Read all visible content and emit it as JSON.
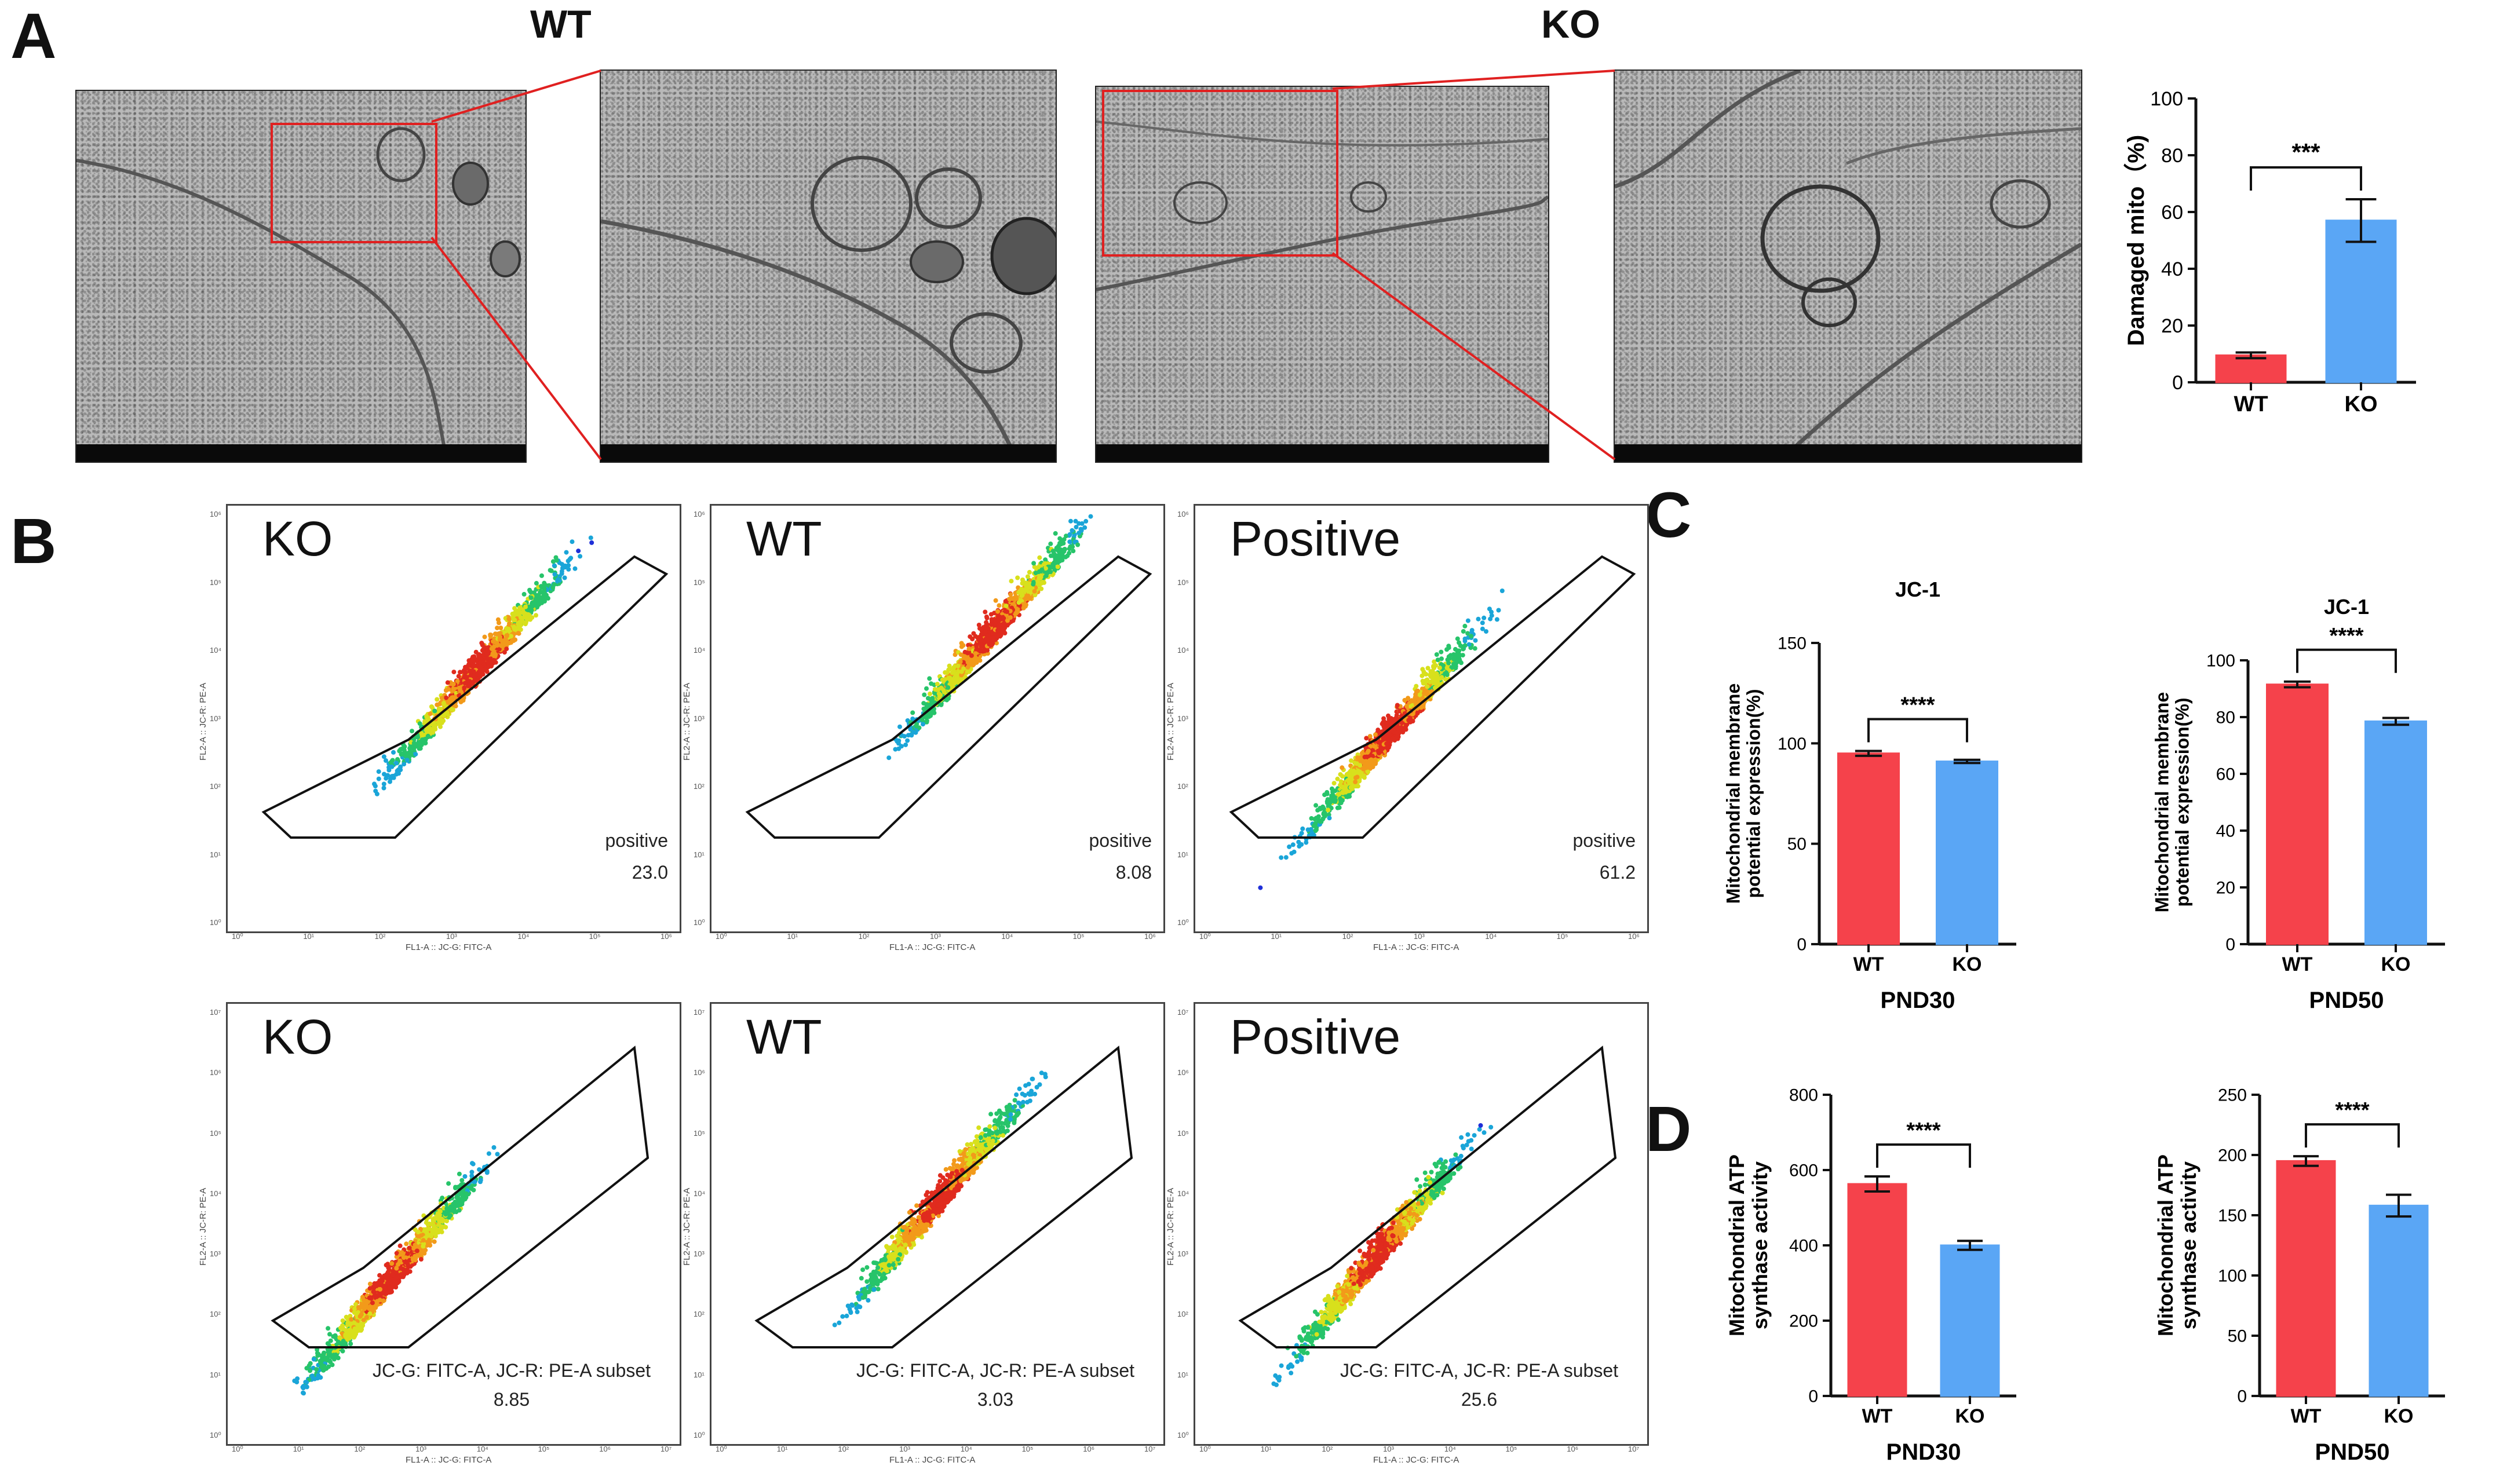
{
  "panels": {
    "A": "A",
    "B": "B",
    "C": "C",
    "D": "D"
  },
  "panel_a": {
    "wt_label": "WT",
    "ko_label": "KO",
    "em_images": [
      {
        "name": "wt-overview"
      },
      {
        "name": "wt-zoom"
      },
      {
        "name": "ko-overview"
      },
      {
        "name": "ko-zoom"
      }
    ]
  },
  "flow": {
    "x_axis_label": "FL1-A :: JC-G: FITC-A",
    "y_axis_label": "FL2-A :: JC-R: PE-A",
    "x_ticks": [
      "10⁰",
      "10¹",
      "10²",
      "10³",
      "10⁴",
      "10⁵",
      "10⁶"
    ],
    "y_ticks": [
      "10⁰",
      "10¹",
      "10²",
      "10³",
      "10⁴",
      "10⁵",
      "10⁶"
    ],
    "x_ticks_row2": [
      "10⁰",
      "10¹",
      "10²",
      "10³",
      "10⁴",
      "10⁵",
      "10⁶",
      "10⁷"
    ],
    "y_ticks_row2": [
      "10⁰",
      "10¹",
      "10²",
      "10³",
      "10⁴",
      "10⁵",
      "10⁶",
      "10⁷"
    ],
    "row1": [
      {
        "label": "KO",
        "gate_label": "positive",
        "gate_value": "23.0",
        "hotspot": 0.62
      },
      {
        "label": "WT",
        "gate_label": "positive",
        "gate_value": "8.08",
        "hotspot": 0.72
      },
      {
        "label": "Positive",
        "gate_label": "positive",
        "gate_value": "61.2",
        "hotspot": 0.45
      }
    ],
    "row2": [
      {
        "label": "KO",
        "gate_label": "JC-G: FITC-A, JC-R: PE-A subset",
        "gate_value": "8.85",
        "hotspot": 0.35
      },
      {
        "label": "WT",
        "gate_label": "JC-G: FITC-A, JC-R: PE-A subset",
        "gate_value": "3.03",
        "hotspot": 0.55
      },
      {
        "label": "Positive",
        "gate_label": "JC-G: FITC-A, JC-R: PE-A subset",
        "gate_value": "25.6",
        "hotspot": 0.4
      }
    ]
  },
  "colors": {
    "wt": "#f5424b",
    "ko": "#5aa6f5",
    "axis": "#111111",
    "gate": "#111111"
  },
  "chart_data": [
    {
      "id": "A-damaged-mito",
      "type": "bar",
      "title": "",
      "categories": [
        "WT",
        "KO"
      ],
      "values": [
        9.5,
        57
      ],
      "errors": [
        1,
        7.5
      ],
      "ylabel": "Damaged mito（%)",
      "xlabel": "",
      "ylim": [
        0,
        100
      ],
      "yticks": [
        0,
        20,
        40,
        60,
        80,
        100
      ],
      "significance": "***"
    },
    {
      "id": "C-jc1-pnd30",
      "type": "bar",
      "title": "JC-1",
      "categories": [
        "WT",
        "KO"
      ],
      "values": [
        95,
        91
      ],
      "errors": [
        1.2,
        0.8
      ],
      "ylabel": "Mitochondrial membrane potential expression(%)",
      "ylabel_lines": [
        "Mitochondrial membrane",
        "potential expression(%)"
      ],
      "xlabel": "PND30",
      "ylim": [
        0,
        150
      ],
      "yticks": [
        0,
        50,
        100,
        150
      ],
      "significance": "****"
    },
    {
      "id": "C-jc1-pnd50",
      "type": "bar",
      "title": "JC-1",
      "categories": [
        "WT",
        "KO"
      ],
      "values": [
        91.5,
        78.5
      ],
      "errors": [
        1,
        1.2
      ],
      "ylabel": "Mitochondrial membrane potential expression(%)",
      "ylabel_lines": [
        "Mitochondrial membrane",
        "potential expression(%)"
      ],
      "xlabel": "PND50",
      "ylim": [
        0,
        100
      ],
      "yticks": [
        0,
        20,
        40,
        60,
        80,
        100
      ],
      "significance": "****"
    },
    {
      "id": "D-atp-pnd30",
      "type": "bar",
      "title": "",
      "categories": [
        "WT",
        "KO"
      ],
      "values": [
        563,
        400
      ],
      "errors": [
        20,
        12
      ],
      "ylabel": "Mitochondrial ATP synthase activity",
      "ylabel_lines": [
        "Mitochondrial ATP",
        "synthase activity"
      ],
      "xlabel": "PND30",
      "ylim": [
        0,
        800
      ],
      "yticks": [
        0,
        200,
        400,
        600,
        800
      ],
      "significance": "****"
    },
    {
      "id": "D-atp-pnd50",
      "type": "bar",
      "title": "",
      "categories": [
        "WT",
        "KO"
      ],
      "values": [
        195,
        158
      ],
      "errors": [
        4,
        9
      ],
      "ylabel": "Mitochondrial ATP synthase activity",
      "ylabel_lines": [
        "Mitochondrial ATP",
        "synthase activity"
      ],
      "xlabel": "PND50",
      "ylim": [
        0,
        250
      ],
      "yticks": [
        0,
        50,
        100,
        150,
        200,
        250
      ],
      "significance": "****"
    }
  ]
}
